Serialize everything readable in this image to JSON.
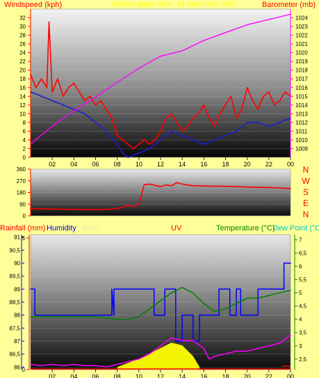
{
  "colors": {
    "page_bg": "#ffff99",
    "wind_speed": "#ff0000",
    "wind_avg": "#1e1ed2",
    "barometer": "#ff00ff",
    "direction": "#ff0000",
    "humidity": "#0000ff",
    "temperature": "#008000",
    "dew_point": "#00c8c8",
    "uv": "#ff0000",
    "solar": "#ffff00",
    "rain": "#ff0000"
  },
  "chart_data": [
    {
      "type": "line",
      "title": "24 hour graph data - 14 December 2007",
      "left_axis_label": "Windspeed (kph)",
      "right_axis_label": "Barometer (mb)",
      "x_ticks": [
        "02",
        "04",
        "06",
        "08",
        "10",
        "12",
        "14",
        "16",
        "18",
        "20",
        "22",
        "00"
      ],
      "y_left_ticks": [
        "0",
        "2",
        "4",
        "6",
        "8",
        "10",
        "12",
        "14",
        "16",
        "18",
        "20",
        "22",
        "24",
        "26",
        "28",
        "30",
        "32"
      ],
      "y_right_ticks": [
        "1009",
        "1010",
        "1011",
        "1012",
        "1013",
        "1014",
        "1015",
        "1016",
        "1017",
        "1018",
        "1019",
        "1020",
        "1021",
        "1022",
        "1023",
        "1024"
      ],
      "ylim_left": [
        0,
        34
      ],
      "ylim_right": [
        1008,
        1025
      ],
      "x_range_hours": [
        0,
        24
      ],
      "series": [
        {
          "axis": "left",
          "x": [
            0,
            0.5,
            1,
            1.5,
            1.7,
            2,
            2.5,
            3,
            3.5,
            4,
            4.5,
            5,
            5.5,
            6,
            6.5,
            7,
            7.5,
            8,
            8.5,
            9,
            9.5,
            10,
            10.5,
            11,
            11.5,
            12,
            12.5,
            13,
            13.5,
            14,
            14.5,
            15,
            15.5,
            16,
            16.5,
            17,
            17.5,
            18,
            18.5,
            19,
            19.5,
            20,
            20.5,
            21,
            21.5,
            22,
            22.5,
            23,
            23.5,
            24
          ],
          "values": [
            19,
            16,
            18,
            16,
            31,
            15,
            18,
            14,
            16,
            17,
            15,
            13,
            14,
            12,
            13,
            11,
            9,
            5,
            4,
            3,
            2,
            3,
            4,
            3,
            4,
            6,
            9,
            10,
            8,
            6,
            7,
            9,
            10,
            12,
            9,
            7,
            10,
            12,
            14,
            9,
            11,
            16,
            13,
            11,
            14,
            15,
            12,
            13,
            15,
            14
          ]
        },
        {
          "axis": "left",
          "x": [
            0,
            1,
            2,
            3,
            4,
            5,
            6,
            7,
            8,
            8.5,
            9,
            10,
            11,
            12,
            13,
            14,
            15,
            16,
            17,
            18,
            19,
            20,
            21,
            22,
            23,
            24
          ],
          "values": [
            15,
            14,
            13,
            12,
            11,
            10,
            8,
            6,
            3,
            1,
            0,
            1,
            2,
            4,
            6,
            5,
            4,
            3,
            4,
            5,
            6,
            8,
            8,
            7,
            8,
            9
          ]
        },
        {
          "axis": "right",
          "x": [
            0,
            2,
            4,
            6,
            8,
            10,
            12,
            14,
            16,
            18,
            20,
            22,
            24
          ],
          "values": [
            1009.5,
            1011.6,
            1013.3,
            1014.9,
            1016.6,
            1018.2,
            1019.6,
            1020.2,
            1021.4,
            1022.3,
            1023.2,
            1023.8,
            1024.4
          ]
        }
      ]
    },
    {
      "type": "line",
      "right_legend_letters": [
        "N",
        "W",
        "S",
        "E",
        "N"
      ],
      "y_ticks": [
        "0",
        "90",
        "180",
        "270",
        "360"
      ],
      "ylim": [
        0,
        360
      ],
      "x_range_hours": [
        0,
        24
      ],
      "series": [
        {
          "x": [
            0,
            2,
            4,
            6,
            7,
            8,
            9,
            9.5,
            10,
            10.5,
            11,
            11.5,
            12,
            12.5,
            13,
            13.5,
            14,
            14.5,
            15,
            16,
            17,
            18,
            19,
            20,
            21,
            22,
            23,
            24
          ],
          "values": [
            55,
            52,
            50,
            48,
            50,
            55,
            80,
            70,
            90,
            240,
            245,
            235,
            225,
            238,
            232,
            255,
            245,
            238,
            232,
            230,
            228,
            228,
            225,
            222,
            220,
            218,
            215,
            210
          ]
        }
      ]
    },
    {
      "type": "line",
      "left_axis_label": "Rainfall (mm)",
      "legend": [
        "Humidity",
        "Solar",
        "UV"
      ],
      "right_axis_label": "Temperature (°C)",
      "right_axis_label_2": "Dew Point (°C)",
      "y_left_ticks": [
        "86",
        "86,5",
        "87",
        "87,5",
        "88",
        "88,5",
        "89",
        "89,5",
        "90",
        "90,5",
        "91"
      ],
      "y_right_ticks": [
        "2,5",
        "3",
        "3,5",
        "4",
        "4,5",
        "5",
        "5,5",
        "6",
        "6,5",
        "7"
      ],
      "y_rain_ticks": [
        "0",
        "5"
      ],
      "x_ticks": [
        "02",
        "04",
        "06",
        "08",
        "10",
        "12",
        "14",
        "16",
        "18",
        "20",
        "22",
        "00"
      ],
      "ylim_left": [
        85.9,
        91.1
      ],
      "ylim_right": [
        2.1,
        7.2
      ],
      "x_range_hours": [
        0,
        24
      ],
      "series": [
        {
          "axis": "left",
          "x": [
            0,
            0.4,
            0.4,
            7.5,
            7.5,
            7.7,
            7.7,
            11.4,
            11.4,
            12.4,
            12.4,
            13.4,
            13.4,
            14.0,
            14.0,
            15.0,
            15.0,
            15.6,
            15.6,
            17.4,
            17.4,
            18.4,
            18.4,
            19.0,
            19.0,
            19.4,
            19.4,
            21.0,
            21.0,
            23.4,
            23.4,
            24
          ],
          "values": [
            89,
            89,
            88,
            88,
            89,
            88,
            89,
            89,
            88,
            88,
            89,
            89,
            87,
            87,
            88,
            88,
            87,
            87,
            88,
            88,
            89,
            89,
            88,
            88,
            89,
            89,
            88,
            88,
            89,
            89,
            90,
            90
          ]
        },
        {
          "axis": "right",
          "x": [
            0,
            2,
            4,
            6,
            8,
            9,
            10,
            11,
            12,
            13,
            14,
            15,
            16,
            17,
            18,
            19,
            20,
            21,
            22,
            23,
            24
          ],
          "values": [
            4.1,
            4.1,
            4.1,
            4.1,
            4.0,
            4.0,
            4.1,
            4.4,
            4.7,
            5.0,
            5.2,
            5.0,
            4.6,
            4.3,
            4.4,
            4.6,
            4.8,
            4.8,
            4.9,
            5.0,
            5.1
          ]
        },
        {
          "axis": "right",
          "x": [
            0,
            1,
            2,
            3,
            4,
            5,
            6,
            7,
            8,
            9,
            10,
            11,
            12,
            13,
            14,
            15,
            16,
            16.5,
            17,
            18,
            19,
            20,
            21,
            22,
            23,
            24
          ],
          "values": [
            2.3,
            2.25,
            2.3,
            2.25,
            2.3,
            2.25,
            2.25,
            2.2,
            2.3,
            2.4,
            2.5,
            2.7,
            3.0,
            3.3,
            3.2,
            3.2,
            2.9,
            2.5,
            2.6,
            2.7,
            2.8,
            2.8,
            2.9,
            3.0,
            3.1,
            3.4
          ]
        },
        {
          "axis": "solar",
          "x": [
            8,
            9,
            10,
            11,
            12,
            13,
            14,
            15,
            15.6
          ],
          "values": [
            0.02,
            0.05,
            0.08,
            0.12,
            0.16,
            0.2,
            0.18,
            0.1,
            0.02
          ]
        }
      ]
    }
  ]
}
